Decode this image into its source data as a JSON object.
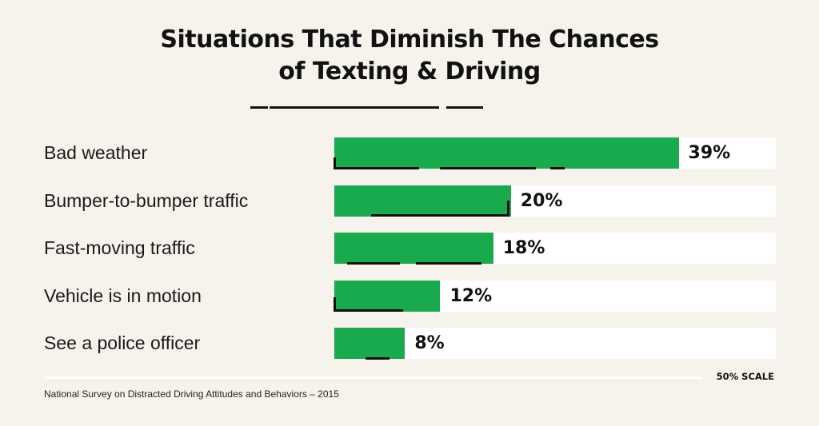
{
  "chart_data": {
    "type": "bar",
    "orientation": "horizontal",
    "title": "Situations That Diminish The Chances of Texting & Driving",
    "title_lines": [
      "Situations That Diminish The Chances",
      "of Texting & Driving"
    ],
    "categories": [
      "Bad weather",
      "Bumper-to-bumper traffic",
      "Fast-moving traffic",
      "Vehicle is in motion",
      "See a police officer"
    ],
    "values": [
      39,
      20,
      18,
      12,
      8
    ],
    "data_labels": [
      "39%",
      "20%",
      "18%",
      "12%",
      "8%"
    ],
    "xlim": [
      0,
      50
    ],
    "scale_label": "50% SCALE",
    "grid": false,
    "colors": {
      "bar": "#1aaa4e",
      "track": "#ffffff",
      "background": "#f6f3ec"
    }
  },
  "footer": {
    "source": "National Survey on Distracted Driving Attitudes and Behaviors – 2015"
  }
}
